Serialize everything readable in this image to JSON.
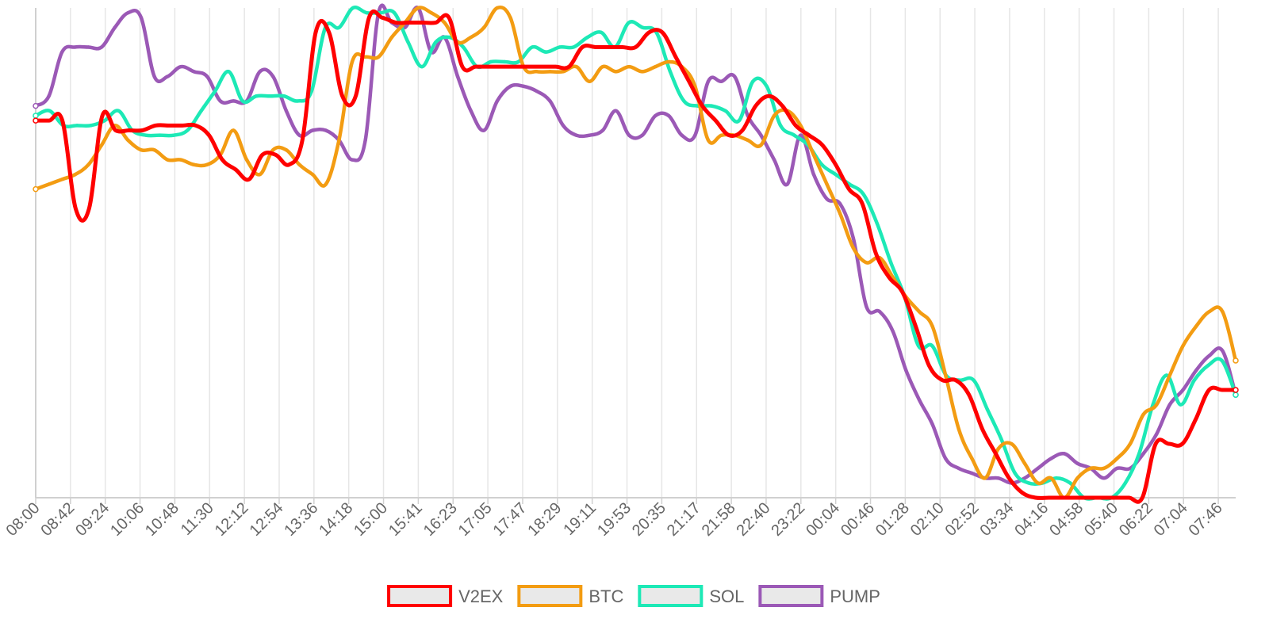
{
  "chart_data": {
    "type": "line",
    "title": "",
    "xlabel": "",
    "ylabel": "",
    "ylim": [
      0,
      100
    ],
    "grid": {
      "vertical": true,
      "horizontal": false
    },
    "legend_position": "bottom",
    "x_ticks": [
      "08:00",
      "08:42",
      "09:24",
      "10:06",
      "10:48",
      "11:30",
      "12:12",
      "12:54",
      "13:36",
      "14:18",
      "15:00",
      "15:41",
      "16:23",
      "17:05",
      "17:47",
      "18:29",
      "19:11",
      "19:53",
      "20:35",
      "21:17",
      "21:58",
      "22:40",
      "23:22",
      "00:04",
      "00:46",
      "01:28",
      "02:10",
      "02:52",
      "03:34",
      "04:16",
      "04:58",
      "05:40",
      "06:22",
      "07:04",
      "07:46"
    ],
    "x_tick_step": 2,
    "series": [
      {
        "name": "V2EX",
        "color": "#ff0000",
        "values": [
          77,
          77,
          77,
          59,
          59,
          78,
          75,
          75,
          75,
          76,
          76,
          76,
          76,
          74,
          69,
          67,
          65,
          70,
          70,
          68,
          73,
          95,
          95,
          82,
          82,
          98,
          98,
          97,
          97,
          97,
          97,
          98,
          88,
          88,
          88,
          88,
          88,
          88,
          88,
          88,
          88,
          92,
          92,
          92,
          92,
          92,
          95,
          95,
          90,
          85,
          80,
          77,
          74,
          75,
          80,
          82,
          80,
          76,
          74,
          72,
          68,
          63,
          60,
          50,
          45,
          42,
          35,
          27,
          24,
          24,
          21,
          14,
          9,
          4,
          1,
          0,
          0,
          0,
          0,
          0,
          0,
          0,
          0,
          0,
          11,
          11,
          11,
          16,
          22,
          22,
          22
        ]
      },
      {
        "name": "BTC",
        "color": "#f39c12",
        "values": [
          63,
          64,
          65,
          66,
          68,
          72,
          76,
          73,
          71,
          71,
          69,
          69,
          68,
          68,
          70,
          75,
          69,
          66,
          71,
          71,
          68,
          66,
          64,
          73,
          89,
          90,
          90,
          94,
          97,
          100,
          99,
          97,
          93,
          94,
          96,
          100,
          98,
          88,
          87,
          87,
          87,
          88,
          85,
          88,
          87,
          88,
          87,
          88,
          89,
          88,
          84,
          73,
          74,
          74,
          73,
          72,
          78,
          79,
          76,
          70,
          64,
          58,
          51,
          48,
          49,
          45,
          41,
          38,
          35,
          25,
          14,
          8,
          4,
          10,
          11,
          7,
          3,
          4,
          0,
          4,
          6,
          6,
          8,
          11,
          17,
          19,
          25,
          31,
          35,
          38,
          38,
          28
        ]
      },
      {
        "name": "SOL",
        "color": "#1de9b6",
        "values": [
          78,
          79,
          76,
          76,
          76,
          77,
          79,
          75,
          74,
          74,
          74,
          75,
          79,
          83,
          87,
          81,
          82,
          82,
          82,
          81,
          83,
          96,
          96,
          100,
          99,
          99,
          99,
          93,
          88,
          93,
          94,
          92,
          88,
          89,
          89,
          89,
          92,
          91,
          92,
          92,
          94,
          95,
          92,
          97,
          96,
          95,
          87,
          81,
          80,
          80,
          79,
          77,
          85,
          84,
          76,
          74,
          72,
          68,
          66,
          64,
          62,
          56,
          48,
          41,
          31,
          31,
          25,
          24,
          24,
          18,
          12,
          5,
          3,
          3,
          4,
          3,
          0,
          0,
          0,
          3,
          9,
          19,
          25,
          19,
          24,
          27,
          28,
          21
        ]
      },
      {
        "name": "PUMP",
        "color": "#9b59b6",
        "values": [
          80,
          82,
          91,
          92,
          92,
          92,
          96,
          99,
          98,
          86,
          86,
          88,
          87,
          86,
          81,
          81,
          81,
          87,
          86,
          79,
          74,
          75,
          75,
          73,
          69,
          73,
          99,
          97,
          96,
          100,
          91,
          94,
          86,
          79,
          75,
          81,
          84,
          84,
          83,
          81,
          76,
          74,
          74,
          75,
          79,
          74,
          74,
          78,
          78,
          74,
          74,
          85,
          85,
          86,
          78,
          74,
          69,
          64,
          74,
          66,
          61,
          60,
          53,
          39,
          38,
          34,
          26,
          20,
          15,
          8,
          6,
          5,
          4,
          4,
          3,
          4,
          6,
          8,
          9,
          7,
          6,
          4,
          6,
          6,
          9,
          13,
          19,
          22,
          26,
          29,
          30,
          21
        ]
      }
    ]
  }
}
